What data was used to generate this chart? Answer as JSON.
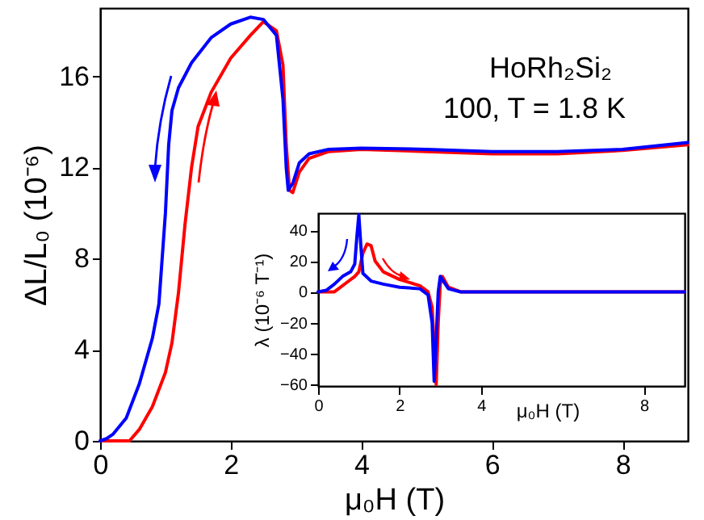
{
  "chart_data": [
    {
      "type": "line",
      "xlabel": "μ₀H (T)",
      "ylabel": "ΔL/L₀ (10⁻⁶)",
      "annotations": [
        "HoRh₂Si₂",
        "100, T = 1.8 K"
      ],
      "xlim": [
        0,
        9
      ],
      "ylim": [
        0,
        19
      ],
      "xticks": [
        0,
        2,
        4,
        6,
        8
      ],
      "yticks": [
        0,
        4,
        8,
        12,
        16
      ],
      "grid": false,
      "line_style": "solid",
      "series": [
        {
          "color": "#ff0000",
          "x": [
            0,
            0.45,
            0.6,
            0.8,
            1.0,
            1.1,
            1.2,
            1.3,
            1.4,
            1.5,
            1.7,
            2.0,
            2.3,
            2.5,
            2.7,
            2.8,
            2.85,
            2.9,
            2.95,
            3.05,
            3.2,
            3.5,
            4,
            5,
            6,
            7,
            8,
            9
          ],
          "values": [
            0,
            0,
            0.5,
            1.5,
            3,
            4.3,
            6.5,
            9.5,
            12,
            13.8,
            15.3,
            16.8,
            17.8,
            18.4,
            18.0,
            16.5,
            13,
            11,
            10.9,
            11.8,
            12.4,
            12.7,
            12.8,
            12.7,
            12.6,
            12.6,
            12.75,
            13.0
          ]
        },
        {
          "color": "#0000ff",
          "x": [
            0,
            0.1,
            0.2,
            0.4,
            0.6,
            0.8,
            0.9,
            0.95,
            1.0,
            1.05,
            1.1,
            1.2,
            1.4,
            1.7,
            2.0,
            2.3,
            2.5,
            2.7,
            2.8,
            2.85,
            2.88,
            2.95,
            3.05,
            3.2,
            3.5,
            4,
            5,
            6,
            7,
            8,
            9
          ],
          "values": [
            0,
            0.1,
            0.3,
            1,
            2.5,
            4.5,
            6,
            8,
            10,
            13,
            14.5,
            15.5,
            16.6,
            17.7,
            18.3,
            18.6,
            18.5,
            17.8,
            15,
            12,
            11,
            11.3,
            12.2,
            12.6,
            12.8,
            12.85,
            12.8,
            12.7,
            12.7,
            12.8,
            13.1
          ]
        }
      ]
    },
    {
      "type": "line",
      "xlabel": "μ₀H (T)",
      "ylabel": "λ (10⁻⁶ T⁻¹)",
      "xlim": [
        0,
        9
      ],
      "ylim": [
        -61,
        51
      ],
      "xticks": [
        0,
        2,
        4,
        8
      ],
      "yticks": [
        -60,
        -40,
        -20,
        0,
        20,
        40
      ],
      "grid": false,
      "line_style": "solid",
      "series": [
        {
          "color": "#ff0000",
          "x": [
            0,
            0.4,
            0.5,
            0.7,
            0.9,
            1.0,
            1.1,
            1.2,
            1.3,
            1.4,
            1.6,
            2.0,
            2.5,
            2.7,
            2.8,
            2.9,
            2.95,
            3.0,
            3.05,
            3.2,
            3.5,
            9
          ],
          "values": [
            0,
            0,
            2,
            6,
            10,
            13,
            25,
            31,
            30,
            20,
            13,
            8,
            4,
            0,
            -10,
            -60,
            -20,
            5,
            10,
            3,
            0,
            0
          ]
        },
        {
          "color": "#0000ff",
          "x": [
            0,
            0.2,
            0.4,
            0.6,
            0.8,
            0.9,
            0.95,
            1.0,
            1.05,
            1.1,
            1.3,
            1.6,
            2.0,
            2.5,
            2.7,
            2.8,
            2.85,
            2.9,
            2.95,
            3.0,
            3.05,
            3.2,
            3.5,
            9
          ],
          "values": [
            0,
            1,
            5,
            10,
            13,
            18,
            35,
            50,
            30,
            12,
            7,
            5,
            3,
            2,
            -2,
            -20,
            -58,
            -30,
            0,
            10,
            8,
            2,
            0,
            0
          ]
        }
      ]
    }
  ]
}
